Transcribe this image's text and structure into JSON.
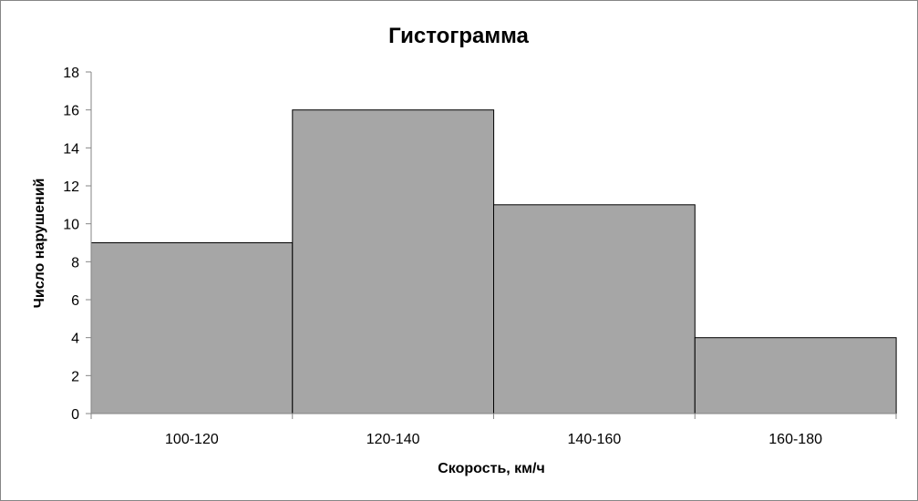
{
  "chart_data": {
    "type": "bar",
    "title": "Гистограмма",
    "xlabel": "Скорость, км/ч",
    "ylabel": "Число нарушений",
    "categories": [
      "100-120",
      "120-140",
      "140-160",
      "160-180"
    ],
    "values": [
      9,
      16,
      11,
      4
    ],
    "ylim": [
      0,
      18
    ],
    "yticks": [
      0,
      2,
      4,
      6,
      8,
      10,
      12,
      14,
      16,
      18
    ],
    "grid": false,
    "legend": "none",
    "bar_color": "#a6a6a6",
    "bar_edge_color": "#000000",
    "axis_color": "#868686"
  }
}
